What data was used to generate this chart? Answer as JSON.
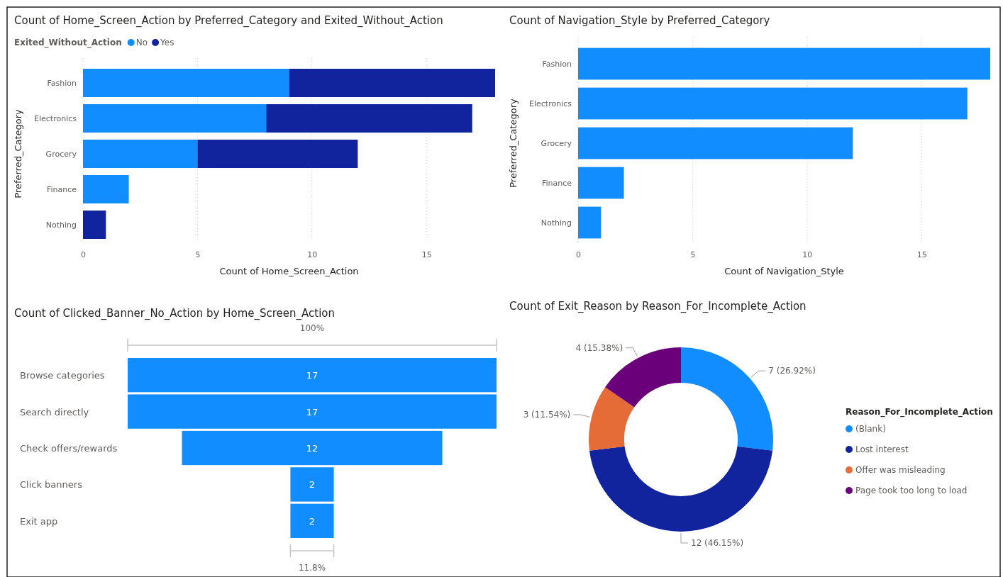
{
  "chart_data": [
    {
      "type": "bar",
      "orientation": "horizontal",
      "stacked": true,
      "title": "Count of Home_Screen_Action by Preferred_Category and Exited_Without_Action",
      "xlabel": "Count of Home_Screen_Action",
      "ylabel": "Preferred_Category",
      "legend_title": "Exited_Without_Action",
      "legend": "top left",
      "grid": "x",
      "categories": [
        "Fashion",
        "Electronics",
        "Grocery",
        "Finance",
        "Nothing"
      ],
      "xlim": [
        0,
        18
      ],
      "xticks": [
        0,
        5,
        10,
        15
      ],
      "series": [
        {
          "name": "No",
          "color": "#118dff",
          "values": [
            9,
            8,
            5,
            2,
            null
          ]
        },
        {
          "name": "Yes",
          "color": "#12239e",
          "values": [
            9,
            9,
            7,
            null,
            1
          ]
        }
      ]
    },
    {
      "type": "bar",
      "orientation": "horizontal",
      "title": "Count of Navigation_Style by Preferred_Category",
      "xlabel": "Count of Navigation_Style",
      "ylabel": "Preferred_Category",
      "grid": "x",
      "categories": [
        "Fashion",
        "Electronics",
        "Grocery",
        "Finance",
        "Nothing"
      ],
      "xlim": [
        0,
        18
      ],
      "xticks": [
        0,
        5,
        10,
        15
      ],
      "color": "#118dff",
      "values": [
        18,
        17,
        12,
        2,
        1
      ]
    },
    {
      "type": "other",
      "title": "Count of Clicked_Banner_No_Action by Home_Screen_Action",
      "categories": [
        "Browse categories",
        "Search directly",
        "Check offers/rewards",
        "Click banners",
        "Exit app"
      ],
      "values": [
        17,
        17,
        12,
        2,
        2
      ],
      "color": "#118dff",
      "data_labels": true,
      "annotations": [
        "100%",
        "11.8%"
      ]
    },
    {
      "type": "donut",
      "title": "Count of Exit_Reason by Reason_For_Incomplete_Action",
      "legend_title": "Reason_For_Incomplete_Action",
      "legend": "right",
      "categories": [
        "(Blank)",
        "Lost interest",
        "Offer was misleading",
        "Page took too long to load"
      ],
      "values": [
        7,
        12,
        3,
        4
      ],
      "colors": [
        "#118dff",
        "#12239e",
        "#e66c37",
        "#6b007b"
      ],
      "value_labels": [
        "7 (26.92%)",
        "12 (46.15%)",
        "3 (11.54%)",
        "4 (15.38%)"
      ]
    }
  ]
}
